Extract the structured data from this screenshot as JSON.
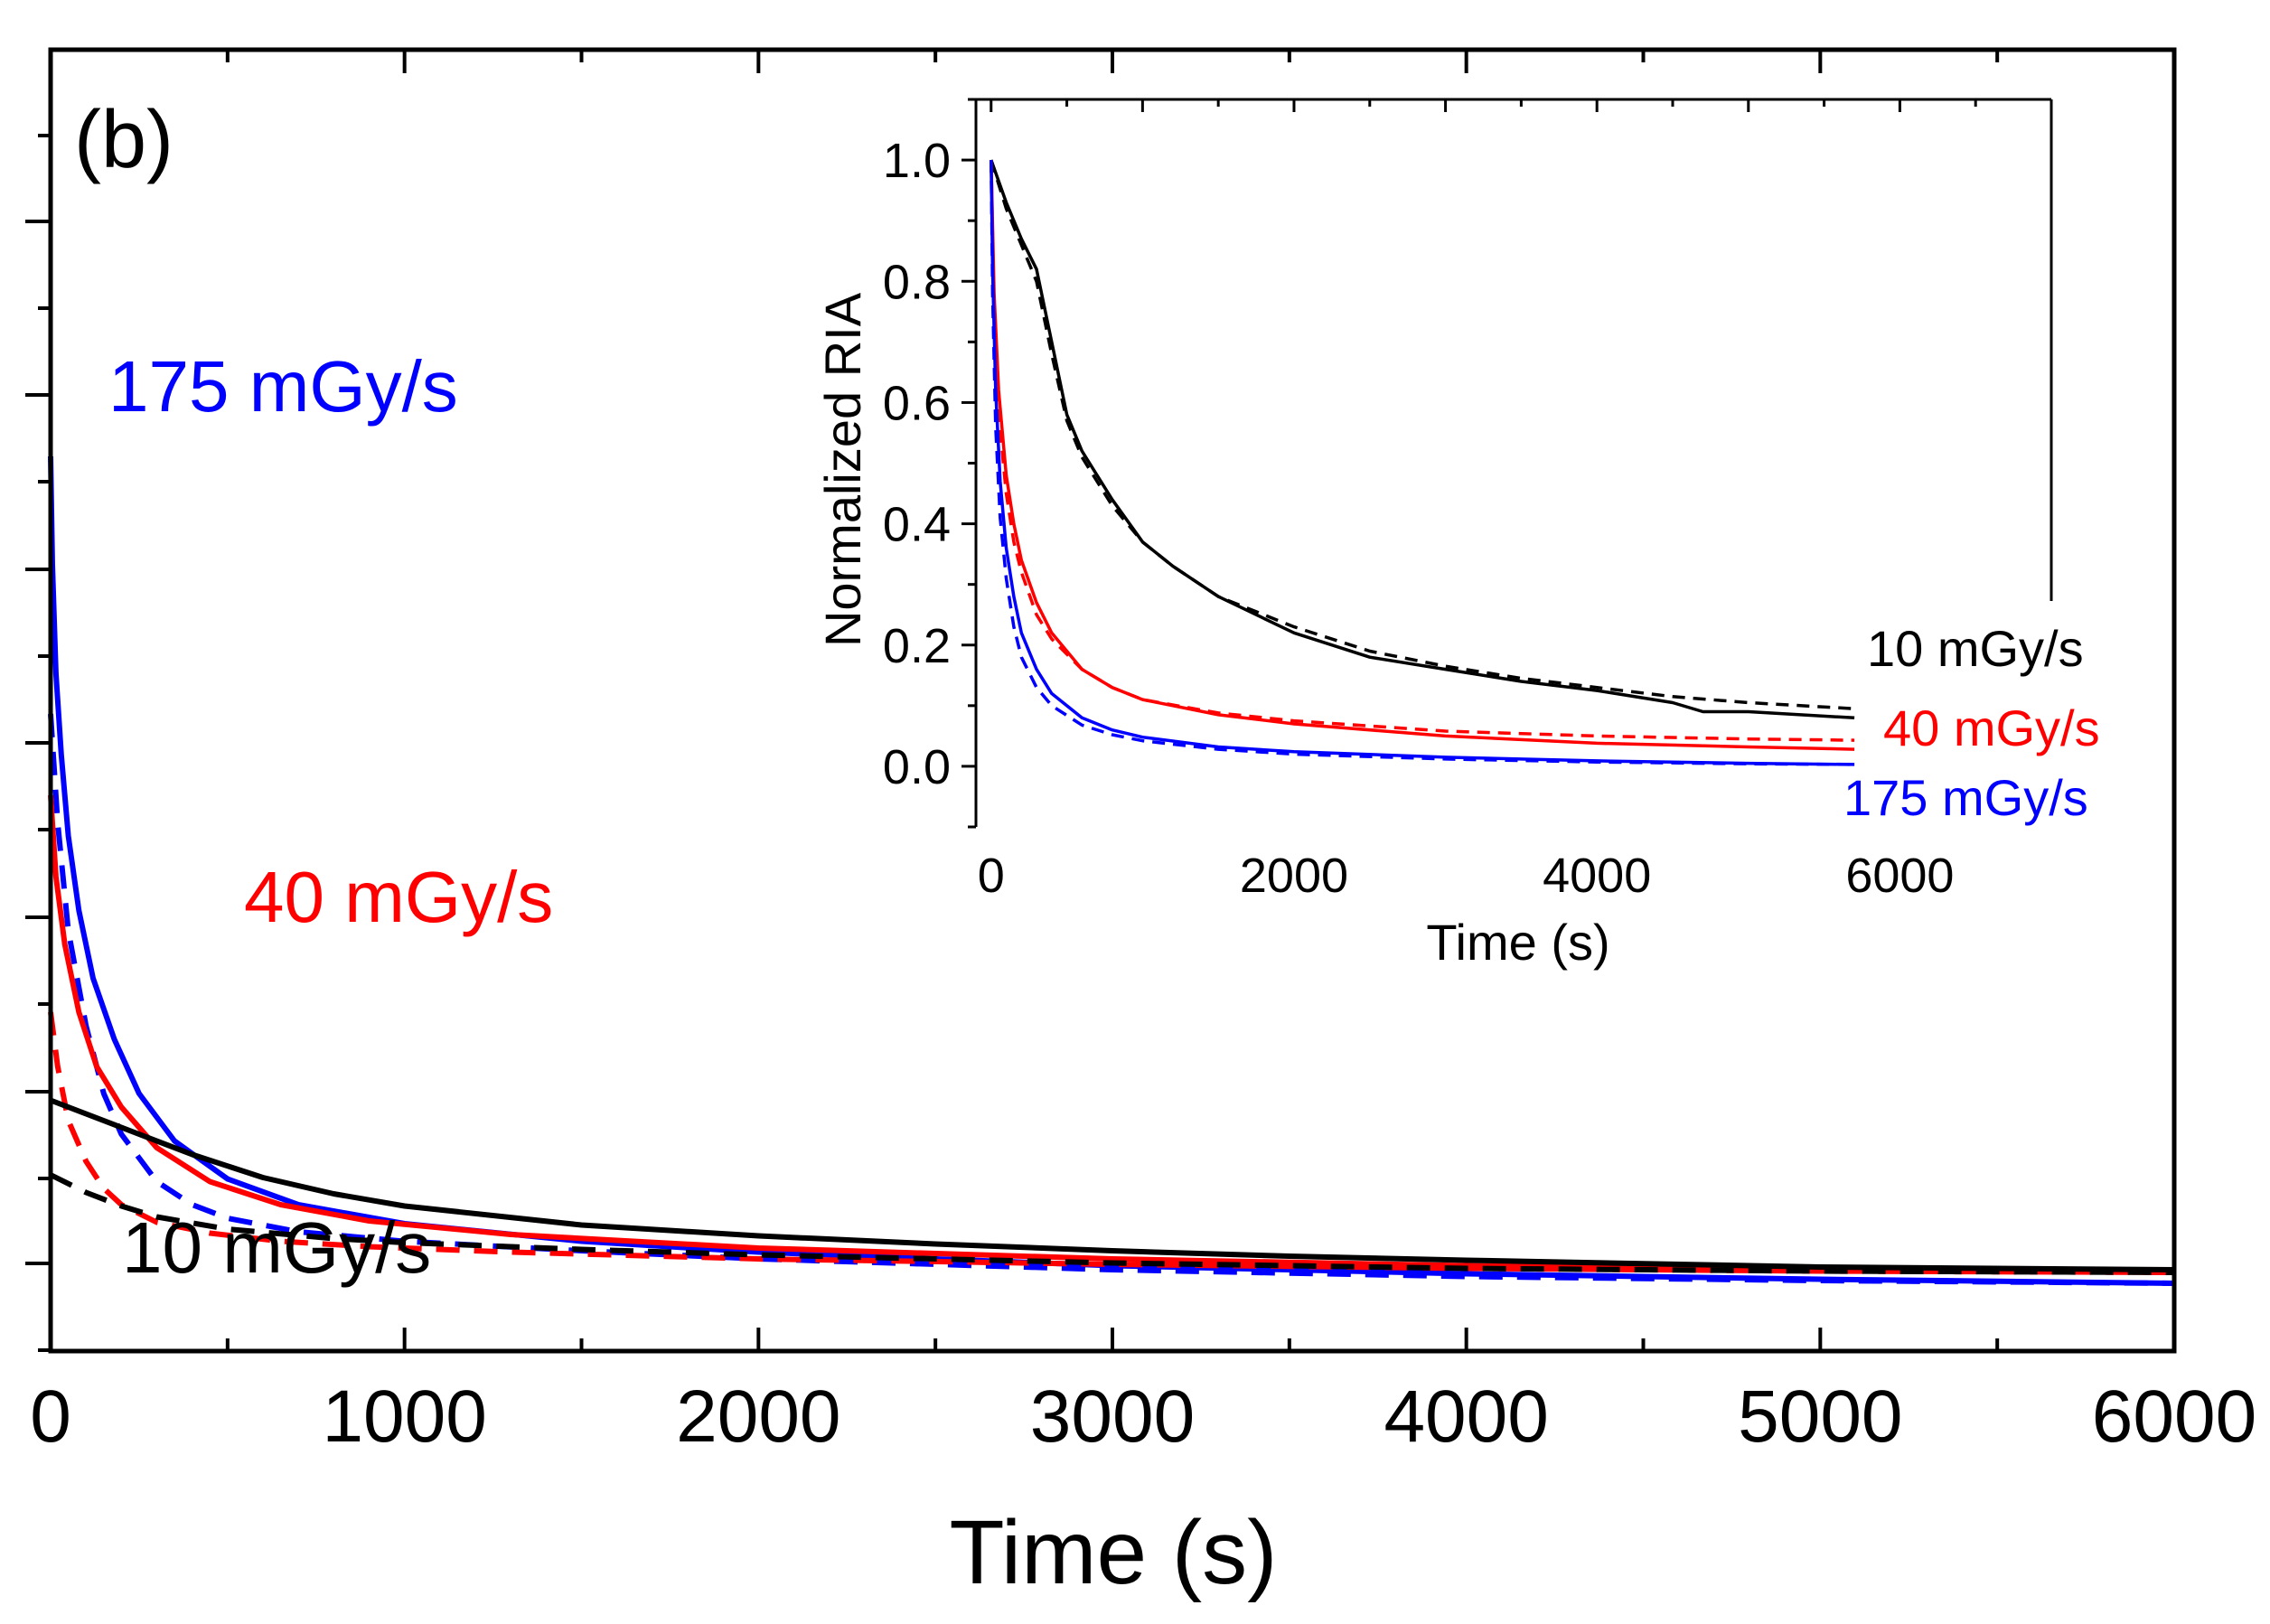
{
  "chart_data": [
    {
      "id": "main",
      "type": "line",
      "panel_label": "(b)",
      "xlabel": "Time (s)",
      "ylabel": "",
      "xlim": [
        0,
        6000
      ],
      "ylim": [
        -0.05,
        0.91
      ],
      "x_ticks": [
        0,
        1000,
        2000,
        3000,
        4000,
        5000,
        6000
      ],
      "x_tick_labels": [
        "0",
        "1000",
        "2000",
        "3000",
        "4000",
        "5000",
        "6000"
      ],
      "y_tick_labels_shown": false,
      "annotations": [
        {
          "text": "175 mGy/s",
          "color": "#0000ff"
        },
        {
          "text": "40 mGy/s",
          "color": "#ff0000"
        },
        {
          "text": "10 mGy/s",
          "color": "#000000"
        }
      ],
      "series": [
        {
          "name": "175 mGy/s measured",
          "color": "#0000ff",
          "dash": "solid",
          "x": [
            0,
            5,
            15,
            30,
            50,
            80,
            120,
            180,
            250,
            350,
            500,
            700,
            1000,
            1500,
            2000,
            3000,
            4000,
            5000,
            6000
          ],
          "y": [
            0.61,
            0.53,
            0.45,
            0.39,
            0.33,
            0.275,
            0.225,
            0.18,
            0.14,
            0.105,
            0.077,
            0.058,
            0.044,
            0.031,
            0.023,
            0.013,
            0.007,
            0.003,
            0.0
          ]
        },
        {
          "name": "175 mGy/s fit",
          "color": "#0000ff",
          "dash": "dashed",
          "x": [
            0,
            20,
            50,
            100,
            150,
            200,
            300,
            400,
            500,
            700,
            1000,
            1500,
            2000,
            3000,
            4000,
            5000,
            6000
          ],
          "y": [
            0.42,
            0.34,
            0.26,
            0.19,
            0.14,
            0.11,
            0.075,
            0.058,
            0.048,
            0.038,
            0.031,
            0.024,
            0.018,
            0.01,
            0.005,
            0.002,
            0.0
          ]
        },
        {
          "name": "40 mGy/s measured",
          "color": "#ff0000",
          "dash": "solid",
          "x": [
            0,
            15,
            40,
            80,
            130,
            200,
            300,
            450,
            650,
            900,
            1300,
            2000,
            3000,
            4000,
            5000,
            6000
          ],
          "y": [
            0.36,
            0.3,
            0.25,
            0.2,
            0.16,
            0.13,
            0.1,
            0.075,
            0.058,
            0.046,
            0.036,
            0.026,
            0.018,
            0.013,
            0.01,
            0.008
          ]
        },
        {
          "name": "40 mGy/s fit",
          "color": "#ff0000",
          "dash": "dashed",
          "x": [
            0,
            20,
            50,
            100,
            150,
            200,
            300,
            450,
            650,
            900,
            1300,
            2000,
            3000,
            4000,
            5000,
            6000
          ],
          "y": [
            0.2,
            0.16,
            0.12,
            0.09,
            0.07,
            0.058,
            0.045,
            0.037,
            0.031,
            0.027,
            0.023,
            0.018,
            0.014,
            0.011,
            0.009,
            0.008
          ]
        },
        {
          "name": "10 mGy/s measured",
          "color": "#000000",
          "dash": "solid",
          "x": [
            0,
            200,
            400,
            600,
            800,
            1000,
            1500,
            2000,
            2500,
            3000,
            3500,
            4000,
            5000,
            6000
          ],
          "y": [
            0.135,
            0.115,
            0.095,
            0.078,
            0.066,
            0.057,
            0.043,
            0.035,
            0.029,
            0.024,
            0.02,
            0.017,
            0.012,
            0.01
          ]
        },
        {
          "name": "10 mGy/s fit",
          "color": "#000000",
          "dash": "dashed",
          "x": [
            0,
            100,
            200,
            300,
            500,
            800,
            1000,
            1500,
            2000,
            3000,
            4000,
            5000,
            6000
          ],
          "y": [
            0.08,
            0.067,
            0.057,
            0.049,
            0.04,
            0.033,
            0.03,
            0.025,
            0.021,
            0.015,
            0.011,
            0.009,
            0.008
          ]
        }
      ]
    },
    {
      "id": "inset",
      "type": "line",
      "xlabel": "Time (s)",
      "ylabel": "Normalized RIA",
      "xlim": [
        -100,
        7000
      ],
      "ylim": [
        -0.1,
        1.1
      ],
      "x_ticks": [
        0,
        2000,
        4000,
        6000
      ],
      "x_tick_labels": [
        "0",
        "2000",
        "4000",
        "6000"
      ],
      "y_ticks": [
        0.0,
        0.2,
        0.4,
        0.6,
        0.8,
        1.0
      ],
      "y_tick_labels": [
        "0.0",
        "0.2",
        "0.4",
        "0.6",
        "0.8",
        "1.0"
      ],
      "annotations": [
        {
          "text": "10 mGy/s",
          "color": "#000000"
        },
        {
          "text": "40 mGy/s",
          "color": "#ff0000"
        },
        {
          "text": "175 mGy/s",
          "color": "#0000ff"
        }
      ],
      "series": [
        {
          "name": "10 mGy/s measured",
          "color": "#000000",
          "dash": "solid",
          "x": [
            0,
            100,
            200,
            300,
            400,
            500,
            600,
            800,
            1000,
            1200,
            1500,
            2000,
            2500,
            3000,
            3500,
            4000,
            4500,
            4700,
            5000,
            5700
          ],
          "y": [
            1.0,
            0.93,
            0.87,
            0.82,
            0.7,
            0.58,
            0.52,
            0.44,
            0.37,
            0.33,
            0.28,
            0.22,
            0.18,
            0.16,
            0.14,
            0.125,
            0.105,
            0.09,
            0.09,
            0.08
          ]
        },
        {
          "name": "10 mGy/s fit",
          "color": "#000000",
          "dash": "dashed",
          "x": [
            0,
            100,
            200,
            300,
            400,
            500,
            600,
            800,
            1000,
            1200,
            1500,
            2000,
            2500,
            3000,
            3500,
            4000,
            4500,
            5000,
            5700
          ],
          "y": [
            1.0,
            0.92,
            0.86,
            0.8,
            0.68,
            0.57,
            0.51,
            0.43,
            0.37,
            0.33,
            0.28,
            0.23,
            0.19,
            0.165,
            0.145,
            0.13,
            0.115,
            0.105,
            0.095
          ]
        },
        {
          "name": "40 mGy/s measured",
          "color": "#ff0000",
          "dash": "solid",
          "x": [
            0,
            20,
            50,
            100,
            150,
            200,
            300,
            400,
            600,
            800,
            1000,
            1500,
            2000,
            3000,
            4000,
            5000,
            5700
          ],
          "y": [
            1.0,
            0.78,
            0.62,
            0.48,
            0.4,
            0.34,
            0.27,
            0.22,
            0.16,
            0.13,
            0.11,
            0.085,
            0.07,
            0.05,
            0.038,
            0.032,
            0.028
          ]
        },
        {
          "name": "40 mGy/s fit",
          "color": "#ff0000",
          "dash": "dashed",
          "x": [
            0,
            20,
            50,
            100,
            150,
            200,
            300,
            400,
            600,
            800,
            1000,
            1500,
            2000,
            3000,
            4000,
            5000,
            5700
          ],
          "y": [
            1.0,
            0.74,
            0.58,
            0.45,
            0.37,
            0.32,
            0.25,
            0.21,
            0.16,
            0.13,
            0.11,
            0.088,
            0.075,
            0.058,
            0.05,
            0.045,
            0.043
          ]
        },
        {
          "name": "175 mGy/s measured",
          "color": "#0000ff",
          "dash": "solid",
          "x": [
            0,
            10,
            30,
            60,
            100,
            150,
            200,
            300,
            400,
            600,
            800,
            1000,
            1500,
            2000,
            3000,
            4000,
            5000,
            5700
          ],
          "y": [
            1.0,
            0.82,
            0.62,
            0.47,
            0.36,
            0.28,
            0.22,
            0.16,
            0.12,
            0.08,
            0.06,
            0.048,
            0.032,
            0.024,
            0.015,
            0.009,
            0.005,
            0.003
          ]
        },
        {
          "name": "175 mGy/s fit",
          "color": "#0000ff",
          "dash": "dashed",
          "x": [
            0,
            10,
            30,
            60,
            100,
            150,
            200,
            300,
            400,
            600,
            800,
            1000,
            1500,
            2000,
            3000,
            4000,
            5000,
            5700
          ],
          "y": [
            1.0,
            0.78,
            0.56,
            0.41,
            0.31,
            0.23,
            0.18,
            0.13,
            0.1,
            0.068,
            0.052,
            0.042,
            0.028,
            0.02,
            0.012,
            0.007,
            0.004,
            0.003
          ]
        }
      ]
    }
  ]
}
